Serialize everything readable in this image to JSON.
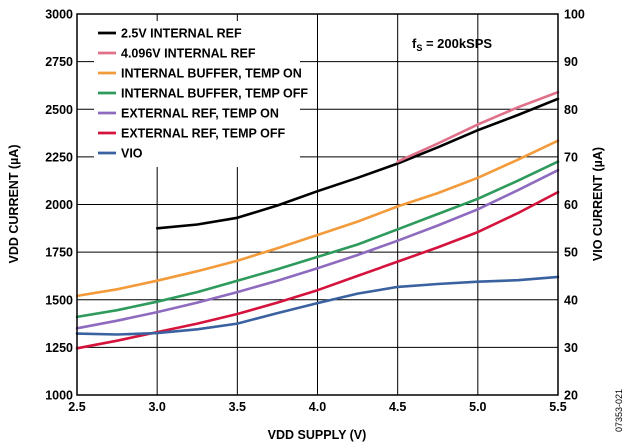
{
  "chart_data": {
    "type": "line",
    "xlabel": "VDD SUPPLY (V)",
    "ylabel": "VDD CURRENT (µA)",
    "y2label": "VIO CURRENT (µA)",
    "xlim": [
      2.5,
      5.5
    ],
    "ylim": [
      1000,
      3000
    ],
    "y2lim": [
      20,
      100
    ],
    "x_ticks": [
      "2.5",
      "3.0",
      "3.5",
      "4.0",
      "4.5",
      "5.0",
      "5.5"
    ],
    "y_ticks": [
      "1000",
      "1250",
      "1500",
      "1750",
      "2000",
      "2250",
      "2500",
      "2750",
      "3000"
    ],
    "y2_ticks": [
      "20",
      "30",
      "40",
      "50",
      "60",
      "70",
      "80",
      "90",
      "100"
    ],
    "grid": true,
    "legend_position": "top-left",
    "annotation": {
      "main": "f",
      "sub": "S",
      "rest": " = 200kSPS"
    },
    "figure_id": "07353-021",
    "series": [
      {
        "name": "2.5V INTERNAL REF",
        "color": "#000000",
        "axis": "left",
        "x": [
          3.0,
          3.25,
          3.5,
          3.75,
          4.0,
          4.25,
          4.5,
          4.75,
          5.0,
          5.25,
          5.5
        ],
        "y": [
          1875,
          1895,
          1930,
          1995,
          2070,
          2140,
          2215,
          2300,
          2390,
          2470,
          2555
        ]
      },
      {
        "name": "4.096V INTERNAL REF",
        "color": "#e0708a",
        "axis": "left",
        "x": [
          4.5,
          4.75,
          5.0,
          5.25,
          5.5
        ],
        "y": [
          2225,
          2320,
          2420,
          2510,
          2590
        ]
      },
      {
        "name": "INTERNAL BUFFER, TEMP ON",
        "color": "#f39a3b",
        "axis": "left",
        "x": [
          2.5,
          2.75,
          3.0,
          3.25,
          3.5,
          3.75,
          4.0,
          4.25,
          4.5,
          4.75,
          5.0,
          5.25,
          5.5
        ],
        "y": [
          1520,
          1555,
          1600,
          1650,
          1705,
          1770,
          1840,
          1910,
          1990,
          2060,
          2140,
          2235,
          2335
        ]
      },
      {
        "name": "INTERNAL BUFFER, TEMP OFF",
        "color": "#2e9a5c",
        "axis": "left",
        "x": [
          2.5,
          2.75,
          3.0,
          3.25,
          3.5,
          3.75,
          4.0,
          4.25,
          4.5,
          4.75,
          5.0,
          5.25,
          5.5
        ],
        "y": [
          1410,
          1445,
          1490,
          1540,
          1600,
          1660,
          1725,
          1790,
          1870,
          1950,
          2030,
          2125,
          2225
        ]
      },
      {
        "name": "EXTERNAL REF, TEMP ON",
        "color": "#8e6bbf",
        "axis": "left",
        "x": [
          2.5,
          2.75,
          3.0,
          3.25,
          3.5,
          3.75,
          4.0,
          4.25,
          4.5,
          4.75,
          5.0,
          5.25,
          5.5
        ],
        "y": [
          1350,
          1390,
          1435,
          1485,
          1540,
          1600,
          1665,
          1735,
          1810,
          1890,
          1975,
          2075,
          2180
        ]
      },
      {
        "name": "EXTERNAL REF, TEMP OFF",
        "color": "#d4143c",
        "axis": "left",
        "x": [
          2.5,
          2.75,
          3.0,
          3.25,
          3.5,
          3.75,
          4.0,
          4.25,
          4.5,
          4.75,
          5.0,
          5.25,
          5.5
        ],
        "y": [
          1245,
          1285,
          1330,
          1375,
          1425,
          1485,
          1550,
          1625,
          1700,
          1775,
          1855,
          1955,
          2065
        ]
      },
      {
        "name": "VIO",
        "color": "#3a62a0",
        "axis": "right",
        "x": [
          2.5,
          2.75,
          3.0,
          3.25,
          3.5,
          3.75,
          4.0,
          4.25,
          4.5,
          4.75,
          5.0,
          5.25,
          5.5
        ],
        "y": [
          32.9,
          32.7,
          33.0,
          33.8,
          35.0,
          37.2,
          39.3,
          41.3,
          42.7,
          43.3,
          43.8,
          44.1,
          44.8
        ]
      }
    ]
  }
}
